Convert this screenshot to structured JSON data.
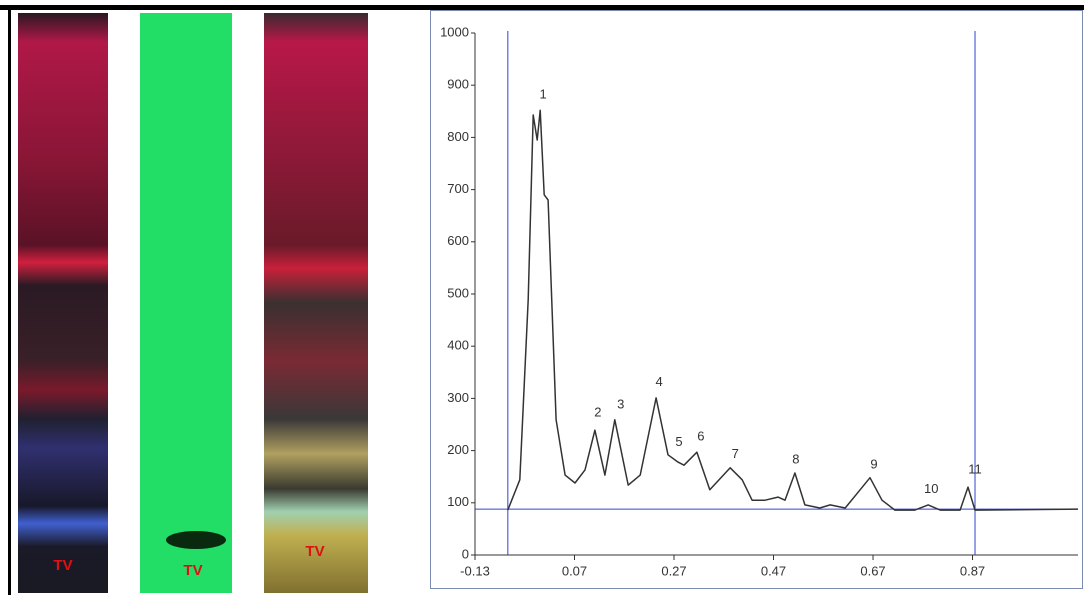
{
  "plates": [
    {
      "label": "TV"
    },
    {
      "label": "TV"
    },
    {
      "label": "TV"
    }
  ],
  "chart_data": {
    "type": "line",
    "x": [
      -0.064,
      -0.04,
      -0.023,
      -0.013,
      -0.005,
      0.001,
      0.009,
      0.017,
      0.033,
      0.051,
      0.071,
      0.091,
      0.111,
      0.131,
      0.151,
      0.178,
      0.202,
      0.234,
      0.258,
      0.278,
      0.29,
      0.316,
      0.342,
      0.383,
      0.407,
      0.427,
      0.453,
      0.479,
      0.493,
      0.513,
      0.533,
      0.563,
      0.584,
      0.614,
      0.644,
      0.664,
      0.688,
      0.714,
      0.754,
      0.781,
      0.805,
      0.845,
      0.861,
      0.875,
      1.082
    ],
    "values": [
      86,
      144,
      489,
      843,
      795,
      852,
      690,
      680,
      259,
      153,
      138,
      163,
      239,
      153,
      259,
      134,
      153,
      301,
      192,
      178,
      172,
      197,
      125,
      167,
      144,
      105,
      105,
      111,
      105,
      157,
      96,
      90,
      96,
      90,
      125,
      148,
      105,
      86,
      86,
      96,
      86,
      86,
      130,
      86,
      88
    ],
    "color": "#333333",
    "xlim": [
      -0.13,
      1.082
    ],
    "ylim": [
      0,
      1000
    ],
    "xticks": [
      -0.13,
      0.07,
      0.27,
      0.47,
      0.67,
      0.87
    ],
    "yticks": [
      0,
      100,
      200,
      300,
      400,
      500,
      600,
      700,
      800,
      900,
      1000
    ],
    "baseline": 88,
    "limits": [
      -0.064,
      0.875
    ],
    "limit_color": "#3344cc",
    "peak_labels": [
      {
        "text": "1",
        "x": 0.007,
        "y": 881
      },
      {
        "text": "2",
        "x": 0.117,
        "y": 272
      },
      {
        "text": "3",
        "x": 0.163,
        "y": 287
      },
      {
        "text": "4",
        "x": 0.24,
        "y": 330
      },
      {
        "text": "5",
        "x": 0.28,
        "y": 215
      },
      {
        "text": "6",
        "x": 0.324,
        "y": 226
      },
      {
        "text": "7",
        "x": 0.393,
        "y": 192
      },
      {
        "text": "8",
        "x": 0.515,
        "y": 182
      },
      {
        "text": "9",
        "x": 0.672,
        "y": 172
      },
      {
        "text": "10",
        "x": 0.787,
        "y": 125
      },
      {
        "text": "11",
        "x": 0.875,
        "y": 163
      }
    ]
  }
}
